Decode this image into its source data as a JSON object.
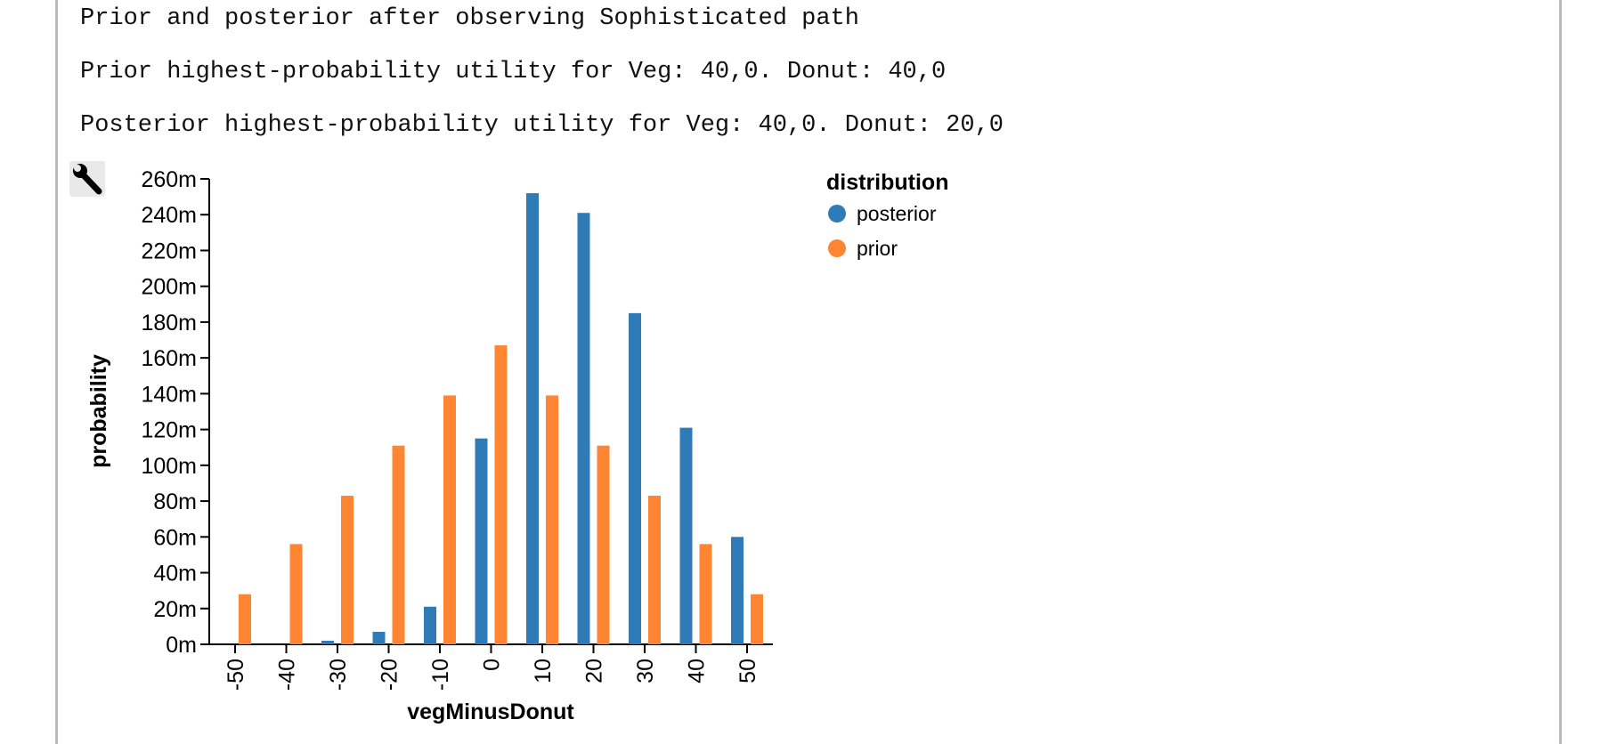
{
  "header": {
    "line1": "Prior and posterior after observing Sophisticated path",
    "line2": "Prior highest-probability utility for Veg: 40,0. Donut: 40,0",
    "line3": "Posterior highest-probability utility for Veg: 40,0. Donut: 20,0"
  },
  "toolbar": {
    "icon": "wrench-icon"
  },
  "chart_data": {
    "type": "bar",
    "xlabel": "vegMinusDonut",
    "ylabel": "probability",
    "ylim": [
      0,
      0.26
    ],
    "y_ticks": [
      "0m",
      "20m",
      "40m",
      "60m",
      "80m",
      "100m",
      "120m",
      "140m",
      "160m",
      "180m",
      "200m",
      "220m",
      "240m",
      "260m"
    ],
    "categories": [
      "-50",
      "-40",
      "-30",
      "-20",
      "-10",
      "0",
      "10",
      "20",
      "30",
      "40",
      "50"
    ],
    "legend": {
      "title": "distribution",
      "placement": "top-right"
    },
    "series": [
      {
        "name": "posterior",
        "color": "#2f7bb8",
        "values": [
          0,
          0,
          0.002,
          0.007,
          0.021,
          0.115,
          0.252,
          0.241,
          0.185,
          0.121,
          0.06
        ]
      },
      {
        "name": "prior",
        "color": "#ff8533",
        "values": [
          0.028,
          0.056,
          0.083,
          0.111,
          0.139,
          0.167,
          0.139,
          0.111,
          0.083,
          0.056,
          0.028
        ]
      }
    ]
  }
}
